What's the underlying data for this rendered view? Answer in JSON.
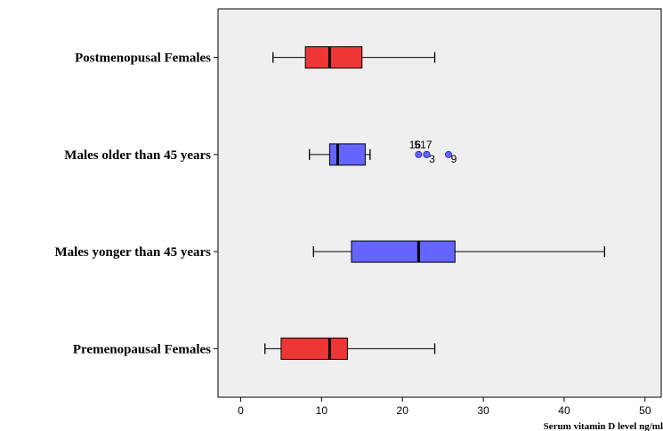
{
  "chart_data": {
    "type": "boxplot",
    "orientation": "horizontal",
    "xlabel": "Serum vitamin D level ng/ml",
    "xlim": [
      -2.8,
      52
    ],
    "xticks": [
      0,
      10,
      20,
      30,
      40,
      50
    ],
    "grid": false,
    "background": "#efefef",
    "categories": [
      "Postmenopusal Females",
      "Males older than 45 years",
      "Males yonger than 45 years",
      "Premenopausal Females"
    ],
    "boxes": [
      {
        "category": "Postmenopusal Females",
        "whisker_low": 4,
        "q1": 8,
        "median": 11,
        "q3": 15,
        "whisker_high": 24,
        "color": "#ef3636",
        "outliers": []
      },
      {
        "category": "Males older than 45 years",
        "whisker_low": 8.5,
        "q1": 11,
        "median": 12,
        "q3": 15.4,
        "whisker_high": 16,
        "color": "#6464ff",
        "outliers": [
          {
            "value": 22,
            "label": "16",
            "label_pos": "above"
          },
          {
            "value": 23,
            "label": "517",
            "label_pos": "above"
          },
          {
            "value": 23,
            "label": "3",
            "label_pos": "below"
          },
          {
            "value": 25.7,
            "label": "9",
            "label_pos": "below"
          }
        ]
      },
      {
        "category": "Males yonger than 45 years",
        "whisker_low": 9,
        "q1": 13.7,
        "median": 22,
        "q3": 26.5,
        "whisker_high": 45,
        "color": "#6464ff",
        "outliers": []
      },
      {
        "category": "Premenopausal Females",
        "whisker_low": 3,
        "q1": 5,
        "median": 11,
        "q3": 13.2,
        "whisker_high": 24,
        "color": "#ef3636",
        "outliers": []
      }
    ]
  }
}
